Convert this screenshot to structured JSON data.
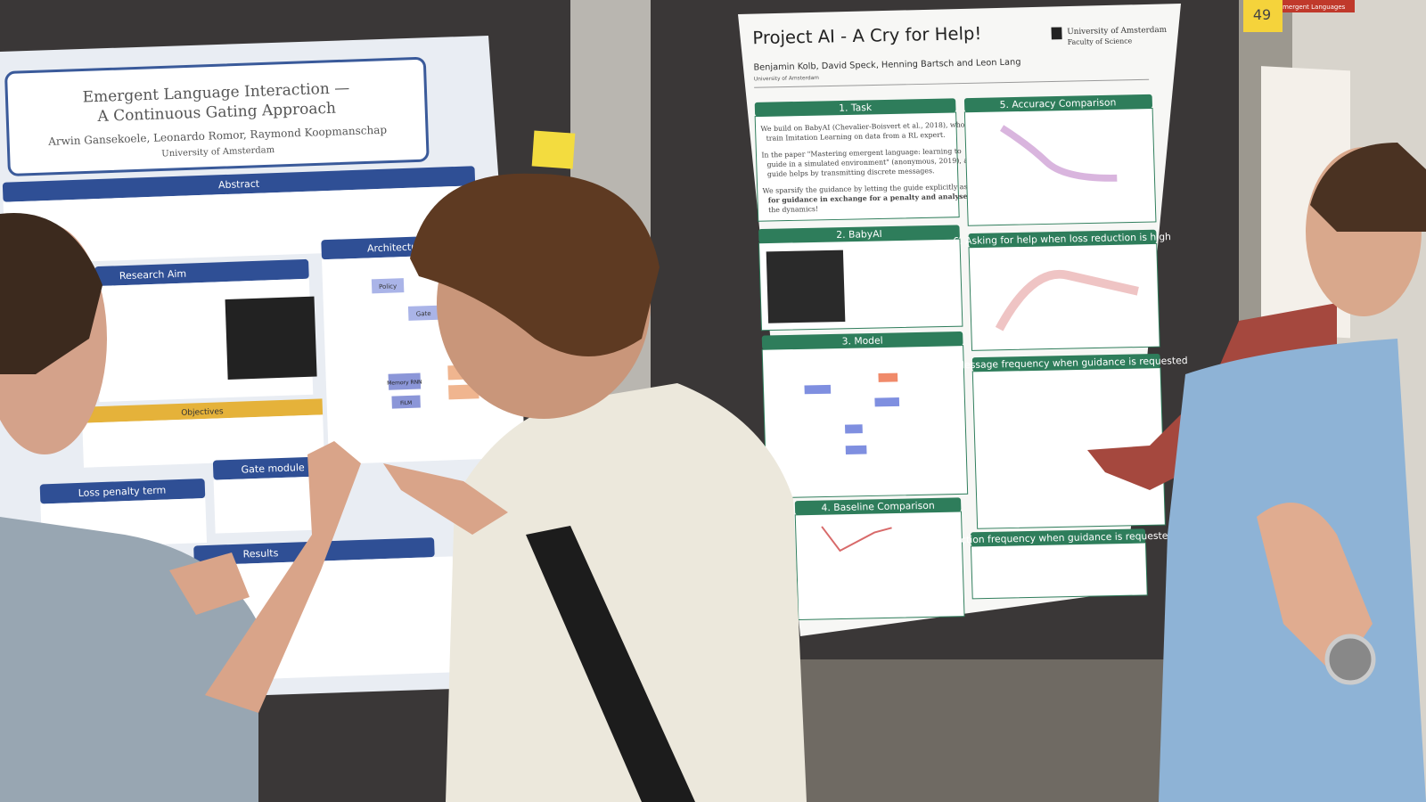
{
  "left_poster": {
    "title_line1": "Emergent Language Interaction —",
    "title_line2": "A Continuous Gating Approach",
    "authors": "Arwin Gansekoele, Leonardo Romor, Raymond Koopmanschap",
    "affiliation": "University of Amsterdam",
    "sections": [
      "Abstract",
      "Research Aim",
      "Architecture",
      "Objectives",
      "Loss penalty term",
      "Gate module",
      "Results"
    ],
    "diagram": [
      "Policy",
      "Gate",
      "Memory RNN",
      "FiLM"
    ]
  },
  "right_poster": {
    "title": "Project AI - A Cry for Help!",
    "authors": "Benjamin Kolb, David Speck, Henning Bartsch and Leon Lang",
    "affiliation": "University of Amsterdam",
    "institution": "University of Amsterdam",
    "faculty": "Faculty of Science",
    "sections": [
      "1. Task",
      "2. BabyAI",
      "3. Model",
      "4. Baseline Comparison",
      "5. Accuracy Comparison",
      "6. Asking for help when loss reduction is high",
      "7. Message frequency when guidance is requested",
      "8. Action frequency when guidance is requested"
    ],
    "task_bullets": [
      "We build on BabyAI (Chevalier-Boisvert et al., 2018), who",
      "train Imitation Learning on data from a RL expert.",
      "In the paper \"Mastering emergent language: learning to",
      "guide in a simulated environment\" (anonymous, 2019), a",
      "guide helps by transmitting discrete messages.",
      "We sparsify the guidance by letting the guide explicitly ask",
      "for guidance in exchange for a penalty and analyse",
      "the dynamics!"
    ]
  },
  "background_poster": {
    "title": "Emergent Languages"
  },
  "sticky_note": "49"
}
